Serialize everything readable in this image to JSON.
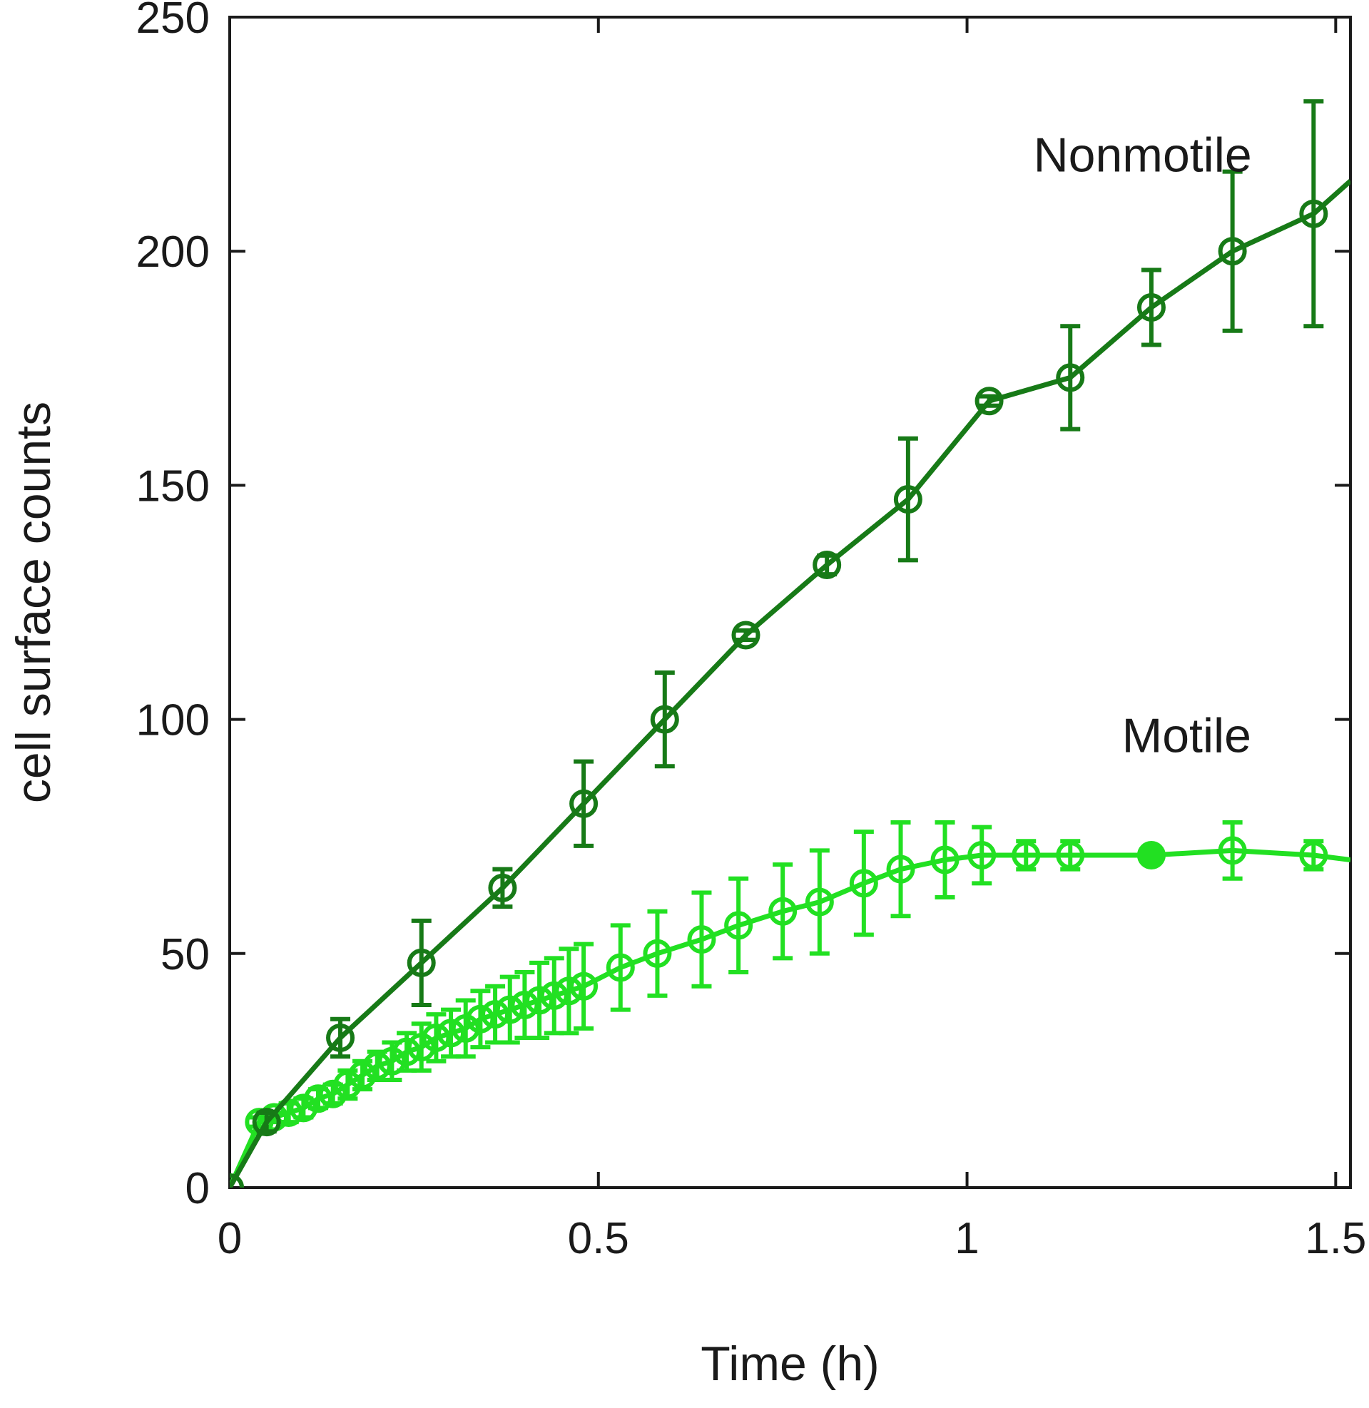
{
  "chart_data": {
    "type": "line",
    "title": "",
    "xlabel": "Time (h)",
    "ylabel": "cell surface counts",
    "xlim": [
      0,
      1.52
    ],
    "ylim": [
      0,
      250
    ],
    "xticks": [
      0,
      0.5,
      1,
      1.5
    ],
    "xtick_labels": [
      "0",
      "0.5",
      "1",
      "1.5"
    ],
    "yticks": [
      0,
      50,
      100,
      150,
      200,
      250
    ],
    "ytick_labels": [
      "0",
      "50",
      "100",
      "150",
      "200",
      "250"
    ],
    "grid": false,
    "annotations": [
      {
        "text": "Nonmotile",
        "x": 1.09,
        "y": 217,
        "series": "Nonmotile"
      },
      {
        "text": "Motile",
        "x": 1.21,
        "y": 93,
        "series": "Motile"
      }
    ],
    "series": [
      {
        "name": "Nonmotile",
        "color": "#177a17",
        "x": [
          0,
          0.05,
          0.15,
          0.26,
          0.37,
          0.48,
          0.59,
          0.7,
          0.81,
          0.92,
          1.03,
          1.14,
          1.25,
          1.36,
          1.47,
          1.52
        ],
        "y": [
          0,
          14,
          32,
          48,
          64,
          82,
          100,
          118,
          133,
          147,
          168,
          173,
          188,
          200,
          208,
          215
        ],
        "err": [
          0,
          2,
          4,
          9,
          4,
          9,
          10,
          1,
          2,
          13,
          1,
          11,
          8,
          17,
          24,
          null
        ],
        "markers": [
          true,
          true,
          true,
          true,
          true,
          true,
          true,
          true,
          true,
          true,
          true,
          true,
          true,
          true,
          true,
          false
        ]
      },
      {
        "name": "Motile",
        "color": "#22e022",
        "x": [
          0,
          0.04,
          0.06,
          0.08,
          0.1,
          0.12,
          0.14,
          0.16,
          0.18,
          0.2,
          0.22,
          0.24,
          0.26,
          0.28,
          0.3,
          0.32,
          0.34,
          0.36,
          0.38,
          0.4,
          0.42,
          0.44,
          0.46,
          0.48,
          0.53,
          0.58,
          0.64,
          0.69,
          0.75,
          0.8,
          0.86,
          0.91,
          0.97,
          1.02,
          1.08,
          1.14,
          1.25,
          1.36,
          1.47,
          1.52
        ],
        "y": [
          0,
          14,
          15,
          16,
          17,
          19,
          20,
          22,
          24,
          26,
          27,
          29,
          30,
          32,
          33,
          34,
          36,
          37,
          38,
          39,
          40,
          41,
          42,
          43,
          47,
          50,
          53,
          56,
          59,
          61,
          65,
          68,
          70,
          71,
          71,
          71,
          71,
          72,
          71,
          70
        ],
        "err": [
          0,
          1,
          1,
          2,
          2,
          2,
          2,
          3,
          3,
          3,
          4,
          4,
          5,
          5,
          5,
          6,
          6,
          6,
          7,
          7,
          8,
          8,
          9,
          9,
          9,
          9,
          10,
          10,
          10,
          11,
          11,
          10,
          8,
          6,
          3,
          3,
          0,
          6,
          3,
          null
        ],
        "markers": [
          true,
          true,
          true,
          true,
          true,
          true,
          true,
          true,
          true,
          true,
          true,
          true,
          true,
          true,
          true,
          true,
          true,
          true,
          true,
          true,
          true,
          true,
          true,
          true,
          true,
          true,
          true,
          true,
          true,
          true,
          true,
          true,
          true,
          true,
          true,
          true,
          true,
          true,
          true,
          false
        ],
        "filled": [
          false,
          false,
          false,
          false,
          false,
          false,
          false,
          false,
          false,
          false,
          false,
          false,
          false,
          false,
          false,
          false,
          false,
          false,
          false,
          false,
          false,
          false,
          false,
          false,
          false,
          false,
          false,
          false,
          false,
          false,
          false,
          false,
          false,
          false,
          false,
          false,
          true,
          false,
          false,
          false
        ]
      }
    ]
  }
}
